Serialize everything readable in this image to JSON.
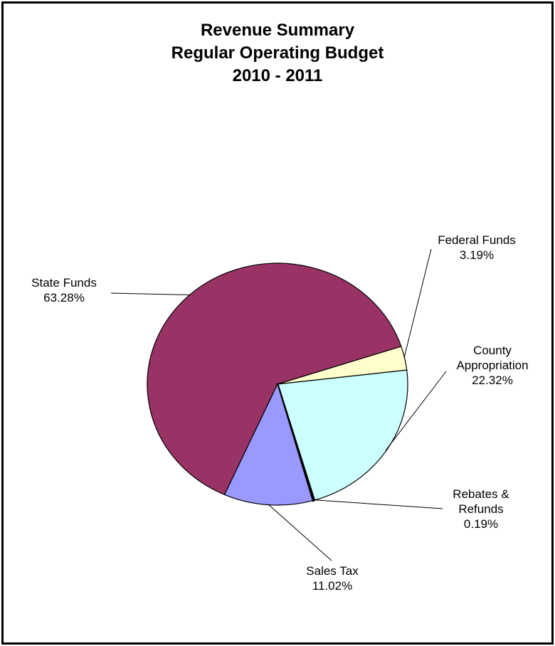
{
  "chart_data": {
    "type": "pie",
    "title": [
      "Revenue Summary",
      "Regular Operating Budget",
      "2010 - 2011"
    ],
    "slices": [
      {
        "name": "State Funds",
        "value": 63.28,
        "label": "63.28%",
        "color": "#993366"
      },
      {
        "name": "Federal Funds",
        "value": 3.19,
        "label": "3.19%",
        "color": "#FFFFCC"
      },
      {
        "name": "County Appropriation",
        "value": 22.32,
        "label": "22.32%",
        "color": "#CCFFFF"
      },
      {
        "name": "Rebates & Refunds",
        "value": 0.19,
        "label": "0.19%",
        "color": "#660066"
      },
      {
        "name": "Sales Tax",
        "value": 11.02,
        "label": "11.02%",
        "color": "#9999FF"
      }
    ],
    "legend": "none"
  }
}
